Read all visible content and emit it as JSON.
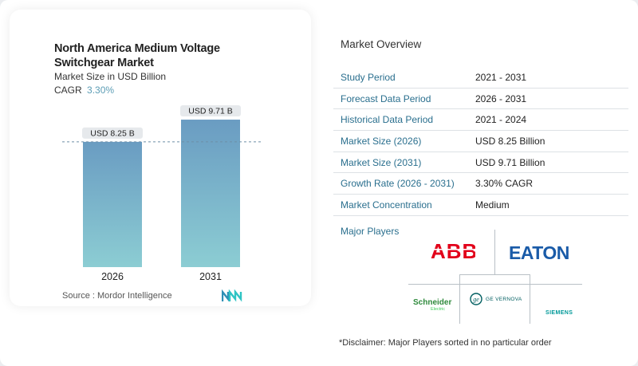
{
  "chart_data": {
    "type": "bar",
    "title": "North America Medium Voltage Switchgear Market",
    "subtitle": "Market Size in USD Billion",
    "cagr_label": "CAGR",
    "cagr_value": "3.30%",
    "categories": [
      "2026",
      "2031"
    ],
    "values": [
      8.25,
      9.71
    ],
    "value_labels": [
      "USD 8.25 B",
      "USD 9.71 B"
    ],
    "ylim": [
      0,
      10.5
    ],
    "bar_color_top": "#6a9cc2",
    "bar_color_bottom": "#8ccdd3",
    "reference_line_color": "#6d8ea8"
  },
  "source": "Source :  Mordor Intelligence",
  "overview": {
    "title": "Market Overview",
    "rows": [
      {
        "label": "Study Period",
        "value": "2021 - 2031"
      },
      {
        "label": "Forecast Data Period",
        "value": "2026 - 2031"
      },
      {
        "label": "Historical Data Period",
        "value": "2021 - 2024"
      },
      {
        "label": "Market Size (2026)",
        "value": "USD 8.25 Billion"
      },
      {
        "label": "Market Size (2031)",
        "value": "USD 9.71 Billion"
      },
      {
        "label": "Growth Rate (2026 - 2031)",
        "value": "3.30% CAGR"
      },
      {
        "label": "Market Concentration",
        "value": "Medium"
      }
    ]
  },
  "players": {
    "title": "Major Players",
    "logos": {
      "abb": "ABB",
      "eaton": "EATON",
      "schneider": "Schneider",
      "schneider_sub": "Electric",
      "ge": "GE VERNOVA",
      "siemens": "SIEMENS"
    }
  },
  "disclaimer": "*Disclaimer: Major Players sorted in no particular order",
  "colors": {
    "accent": "#2a6f8e",
    "abb_red": "#e2001a",
    "eaton_blue": "#1a5ba8",
    "schneider_green": "#3dcd58",
    "ge_teal": "#005e60",
    "siemens_teal": "#009999"
  }
}
